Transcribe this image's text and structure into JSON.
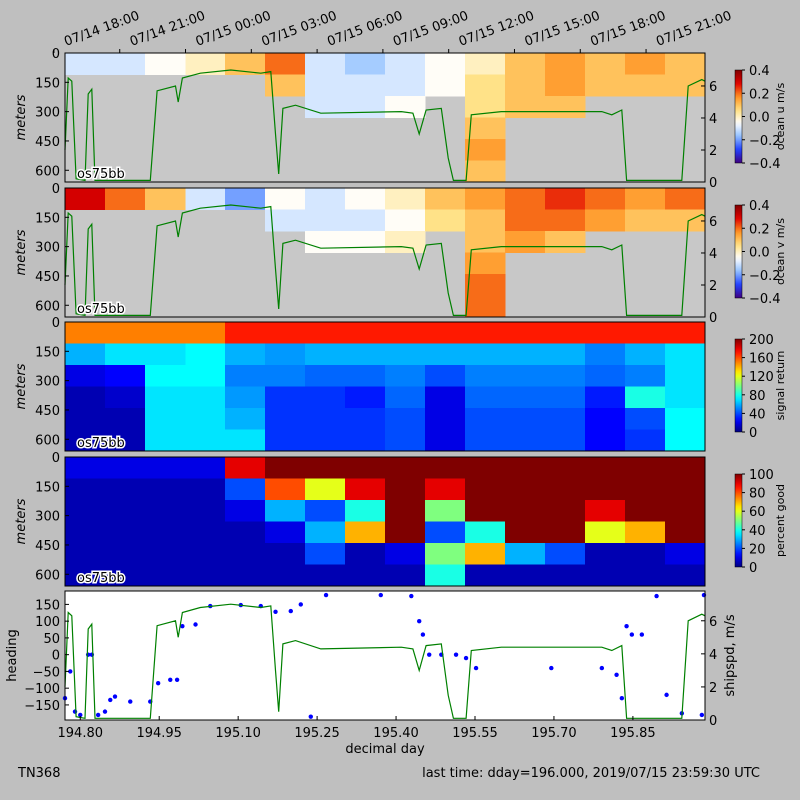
{
  "footer_left": "TN368",
  "footer_right": "last time: dday=196.000,  2019/07/15 23:59:30 UTC",
  "chart_data": [
    {
      "type": "heatmap",
      "ylabel": "meters",
      "label": "os75bb",
      "colorbar_label": "ocean u m/s",
      "colormap": "diverging",
      "xlim": [
        194.771,
        195.987
      ],
      "ylim": [
        660,
        0
      ],
      "yticks": [
        0,
        150,
        300,
        450,
        600
      ],
      "zlim": [
        -0.4,
        0.4
      ],
      "zticks": [
        {
          "value": 0.4,
          "label": "0.4"
        },
        {
          "value": 0.2,
          "label": "0.2"
        },
        {
          "value": 0,
          "label": "0.0"
        },
        {
          "value": -0.2,
          "label": "−0.2"
        },
        {
          "value": -0.4,
          "label": "−0.4"
        }
      ],
      "y2lim": [
        0,
        8.06
      ],
      "y2ticks": [
        0,
        2,
        4,
        6
      ],
      "y2color": "#008000",
      "x2ticks": [
        {
          "value": 194.75,
          "label": "07/14 18:00"
        },
        {
          "value": 194.875,
          "label": "07/14 21:00"
        },
        {
          "value": 195.0,
          "label": "07/15 00:00"
        },
        {
          "value": 195.125,
          "label": "07/15 03:00"
        },
        {
          "value": 195.25,
          "label": "07/15 06:00"
        },
        {
          "value": 195.375,
          "label": "07/15 09:00"
        },
        {
          "value": 195.5,
          "label": "07/15 12:00"
        },
        {
          "value": 195.625,
          "label": "07/15 15:00"
        },
        {
          "value": 195.75,
          "label": "07/15 18:00"
        },
        {
          "value": 195.875,
          "label": "07/15 21:00"
        }
      ],
      "x_edges": [
        194.771,
        194.847,
        194.923,
        195.0,
        195.075,
        195.151,
        195.227,
        195.303,
        195.379,
        195.455,
        195.531,
        195.607,
        195.683,
        195.759,
        195.835,
        195.911,
        195.987
      ],
      "depth_edges": [
        0,
        110,
        220,
        330,
        440,
        550,
        660
      ],
      "values": [
        [
          -0.1,
          -0.1,
          -0.05,
          0.0,
          0.1,
          0.2,
          -0.1,
          -0.15,
          -0.1,
          -0.05,
          0.0,
          0.1,
          0.15,
          0.1,
          0.15,
          0.1
        ],
        [
          null,
          null,
          null,
          null,
          null,
          0.1,
          -0.1,
          -0.1,
          -0.1,
          -0.05,
          0.05,
          0.1,
          0.15,
          0.1,
          0.1,
          0.1
        ],
        [
          null,
          null,
          null,
          null,
          null,
          null,
          -0.1,
          -0.1,
          -0.05,
          null,
          0.05,
          0.1,
          0.1,
          null,
          null,
          null
        ],
        [
          null,
          null,
          null,
          null,
          null,
          null,
          null,
          null,
          null,
          null,
          0.1,
          null,
          null,
          null,
          null,
          null
        ],
        [
          null,
          null,
          null,
          null,
          null,
          null,
          null,
          null,
          null,
          null,
          0.15,
          null,
          null,
          null,
          null,
          null
        ],
        [
          null,
          null,
          null,
          null,
          null,
          null,
          null,
          null,
          null,
          null,
          0.1,
          null,
          null,
          null,
          null,
          null
        ]
      ]
    },
    {
      "type": "heatmap",
      "ylabel": "meters",
      "label": "os75bb",
      "colorbar_label": "ocean v m/s",
      "colormap": "diverging",
      "xlim": [
        194.771,
        195.987
      ],
      "ylim": [
        660,
        0
      ],
      "yticks": [
        0,
        150,
        300,
        450,
        600
      ],
      "zlim": [
        -0.4,
        0.4
      ],
      "zticks": [
        {
          "value": 0.4,
          "label": "0.4"
        },
        {
          "value": 0.2,
          "label": "0.2"
        },
        {
          "value": 0,
          "label": "0.0"
        },
        {
          "value": -0.2,
          "label": "−0.2"
        },
        {
          "value": -0.4,
          "label": "−0.4"
        }
      ],
      "y2lim": [
        0,
        8.06
      ],
      "y2ticks": [
        0,
        2,
        4,
        6
      ],
      "y2color": "#008000",
      "x_edges": [
        194.771,
        194.847,
        194.923,
        195.0,
        195.075,
        195.151,
        195.227,
        195.303,
        195.379,
        195.455,
        195.531,
        195.607,
        195.683,
        195.759,
        195.835,
        195.911,
        195.987
      ],
      "depth_edges": [
        0,
        110,
        220,
        330,
        440,
        550,
        660
      ],
      "values": [
        [
          0.3,
          0.2,
          0.1,
          -0.1,
          -0.2,
          -0.05,
          -0.1,
          -0.05,
          0.0,
          0.1,
          0.15,
          0.2,
          0.25,
          0.2,
          0.15,
          0.2
        ],
        [
          null,
          null,
          null,
          null,
          null,
          -0.1,
          -0.1,
          -0.1,
          -0.05,
          0.05,
          0.1,
          0.2,
          0.2,
          0.15,
          0.1,
          0.1
        ],
        [
          null,
          null,
          null,
          null,
          null,
          null,
          -0.05,
          -0.05,
          0.0,
          null,
          0.1,
          0.15,
          0.1,
          null,
          null,
          null
        ],
        [
          null,
          null,
          null,
          null,
          null,
          null,
          null,
          null,
          null,
          null,
          0.15,
          null,
          null,
          null,
          null,
          null
        ],
        [
          null,
          null,
          null,
          null,
          null,
          null,
          null,
          null,
          null,
          null,
          0.2,
          null,
          null,
          null,
          null,
          null
        ],
        [
          null,
          null,
          null,
          null,
          null,
          null,
          null,
          null,
          null,
          null,
          0.2,
          null,
          null,
          null,
          null,
          null
        ]
      ]
    },
    {
      "type": "heatmap",
      "ylabel": "meters",
      "label": "os75bb",
      "colorbar_label": "signal return",
      "colormap": "jet",
      "xlim": [
        194.771,
        195.987
      ],
      "ylim": [
        660,
        0
      ],
      "yticks": [
        0,
        150,
        300,
        450,
        600
      ],
      "zlim": [
        0,
        200
      ],
      "zticks": [
        200,
        160,
        120,
        80,
        40,
        0
      ],
      "x_edges": [
        194.771,
        194.847,
        194.923,
        195.0,
        195.075,
        195.151,
        195.227,
        195.303,
        195.379,
        195.455,
        195.531,
        195.607,
        195.683,
        195.759,
        195.835,
        195.911,
        195.987
      ],
      "depth_edges": [
        0,
        110,
        220,
        330,
        440,
        550,
        660
      ],
      "values": [
        [
          150,
          150,
          150,
          150,
          170,
          170,
          170,
          170,
          170,
          170,
          170,
          170,
          170,
          170,
          170,
          170
        ],
        [
          60,
          70,
          70,
          75,
          60,
          55,
          60,
          60,
          60,
          60,
          60,
          60,
          60,
          50,
          60,
          70
        ],
        [
          20,
          25,
          75,
          75,
          50,
          50,
          45,
          45,
          50,
          40,
          50,
          50,
          50,
          45,
          50,
          70
        ],
        [
          10,
          15,
          70,
          70,
          55,
          35,
          35,
          30,
          45,
          20,
          45,
          45,
          45,
          30,
          80,
          70
        ],
        [
          10,
          10,
          70,
          70,
          60,
          35,
          35,
          35,
          40,
          20,
          40,
          40,
          40,
          25,
          40,
          75
        ],
        [
          10,
          10,
          70,
          70,
          70,
          35,
          35,
          35,
          40,
          20,
          40,
          40,
          40,
          25,
          35,
          75
        ]
      ]
    },
    {
      "type": "heatmap",
      "ylabel": "meters",
      "label": "os75bb",
      "colorbar_label": "percent good",
      "colormap": "jet",
      "xlim": [
        194.771,
        195.987
      ],
      "ylim": [
        660,
        0
      ],
      "yticks": [
        0,
        150,
        300,
        450,
        600
      ],
      "zlim": [
        0,
        100
      ],
      "zticks": [
        100,
        80,
        60,
        40,
        20,
        0
      ],
      "x_edges": [
        194.771,
        194.847,
        194.923,
        195.0,
        195.075,
        195.151,
        195.227,
        195.303,
        195.379,
        195.455,
        195.531,
        195.607,
        195.683,
        195.759,
        195.835,
        195.911,
        195.987
      ],
      "depth_edges": [
        0,
        110,
        220,
        330,
        440,
        550,
        660
      ],
      "values": [
        [
          10,
          10,
          10,
          10,
          90,
          100,
          100,
          100,
          100,
          100,
          100,
          100,
          100,
          100,
          100,
          100
        ],
        [
          5,
          5,
          5,
          5,
          20,
          80,
          60,
          90,
          100,
          90,
          100,
          100,
          100,
          100,
          100,
          100
        ],
        [
          5,
          5,
          5,
          5,
          10,
          30,
          20,
          40,
          100,
          50,
          100,
          100,
          100,
          90,
          100,
          100
        ],
        [
          5,
          5,
          5,
          5,
          5,
          10,
          30,
          70,
          100,
          20,
          40,
          100,
          100,
          60,
          70,
          100
        ],
        [
          5,
          5,
          5,
          5,
          5,
          5,
          20,
          5,
          10,
          50,
          70,
          30,
          20,
          5,
          5,
          10
        ],
        [
          5,
          5,
          5,
          5,
          5,
          5,
          5,
          5,
          5,
          40,
          5,
          5,
          5,
          5,
          5,
          5
        ]
      ]
    },
    {
      "type": "scatter_line",
      "xlabel": "decimal day",
      "y2label": "shipspd, m/s",
      "xlim": [
        194.771,
        195.987
      ],
      "xticks": [
        {
          "value": 194.8,
          "label": "194.80"
        },
        194.95,
        {
          "value": 195.1,
          "label": "195.10"
        },
        195.25,
        {
          "value": 195.4,
          "label": "195.40"
        },
        195.55,
        {
          "value": 195.7,
          "label": "195.70"
        },
        195.85
      ],
      "ylim": [
        -195,
        190
      ],
      "yticks": [
        150,
        100,
        50,
        0,
        {
          "value": -50,
          "label": "−50"
        },
        {
          "value": -100,
          "label": "−100"
        },
        {
          "value": -150,
          "label": "−150"
        }
      ],
      "y2lim": [
        0,
        7.8
      ],
      "y2ticks": [
        0,
        2,
        4,
        6
      ],
      "series": [
        {
          "name": "heading",
          "color": "#0000ff",
          "x": [
            194.771,
            194.781,
            194.79,
            194.8,
            194.815,
            194.822,
            194.834,
            194.847,
            194.857,
            194.866,
            194.895,
            194.933,
            194.948,
            194.971,
            194.984,
            194.994,
            195.019,
            195.047,
            195.105,
            195.143,
            195.171,
            195.2,
            195.219,
            195.238,
            195.267,
            195.371,
            195.429,
            195.444,
            195.451,
            195.463,
            195.486,
            195.514,
            195.533,
            195.552,
            195.695,
            195.791,
            195.819,
            195.829,
            195.838,
            195.848,
            195.867,
            195.895,
            195.914,
            195.943,
            195.981,
            195.985
          ],
          "values": [
            -130,
            -50,
            -170,
            -180,
            0,
            0,
            -180,
            -170,
            -135,
            -125,
            -140,
            -140,
            -85,
            -75,
            -75,
            85,
            90,
            145,
            148,
            145,
            128,
            130,
            150,
            -185,
            178,
            178,
            175,
            100,
            60,
            0,
            0,
            0,
            -10,
            -40,
            -40,
            -40,
            -60,
            -130,
            85,
            60,
            60,
            175,
            -120,
            -175,
            -180,
            178
          ]
        },
        {
          "color": "#008000",
          "axis": "y2",
          "x": [
            194.771,
            194.777,
            194.784,
            194.792,
            194.809,
            194.815,
            194.822,
            194.828,
            194.933,
            194.946,
            194.981,
            194.986,
            194.994,
            195.028,
            195.086,
            195.143,
            195.162,
            195.171,
            195.177,
            195.185,
            195.209,
            195.257,
            195.41,
            195.432,
            195.444,
            195.457,
            195.486,
            195.499,
            195.509,
            195.533,
            195.543,
            195.6,
            195.791,
            195.81,
            195.829,
            195.838,
            195.943,
            195.955,
            195.981,
            195.987
          ],
          "values": [
            2.0,
            6.5,
            6.3,
            0.2,
            0.1,
            5.5,
            5.8,
            0.1,
            0.1,
            5.7,
            6.0,
            5.0,
            6.5,
            6.8,
            7.0,
            6.8,
            6.9,
            3.0,
            0.5,
            4.6,
            4.8,
            4.3,
            4.4,
            4.3,
            3.0,
            4.5,
            4.6,
            1.5,
            0.1,
            0.1,
            4.2,
            4.4,
            4.4,
            4.2,
            4.5,
            0.1,
            0.1,
            6.0,
            6.4,
            6.3
          ]
        }
      ]
    }
  ]
}
